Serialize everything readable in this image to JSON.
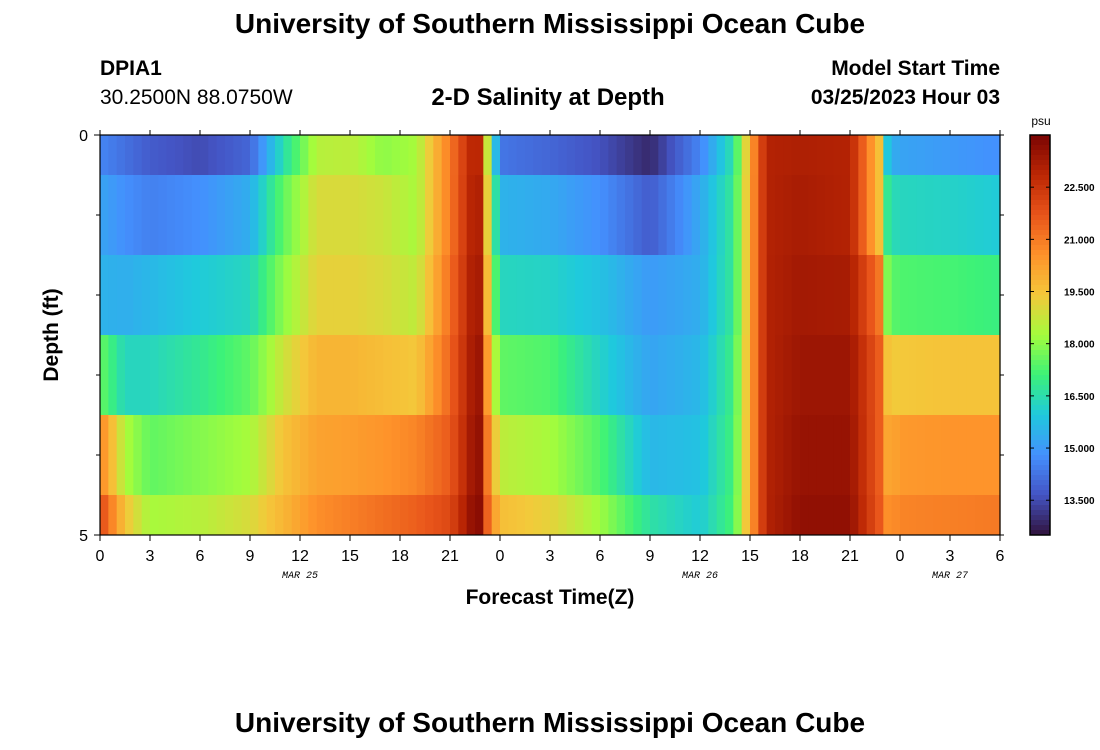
{
  "page": {
    "title": "University of Southern Mississippi Ocean Cube",
    "footer_title": "University of Southern Mississippi Ocean Cube",
    "station_id": "DPIA1",
    "station_coords": "30.2500N  88.0750W",
    "chart_title": "2-D Salinity at Depth",
    "model_start_label": "Model Start Time",
    "model_start_value": "03/25/2023 Hour 03"
  },
  "chart_data": {
    "type": "heatmap",
    "title": "2-D Salinity at Depth",
    "xlabel": "Forecast Time(Z)",
    "ylabel": "Depth (ft)",
    "x_start_hour": 0,
    "x_end_hour": 54,
    "x_tick_labels": [
      "0",
      "3",
      "6",
      "9",
      "12",
      "15",
      "18",
      "21",
      "0",
      "3",
      "6",
      "9",
      "12",
      "15",
      "18",
      "21",
      "0",
      "3",
      "6"
    ],
    "date_labels": [
      {
        "label": "MAR 25",
        "hour": 12
      },
      {
        "label": "MAR 26",
        "hour": 36
      },
      {
        "label": "MAR 27",
        "hour": 51
      }
    ],
    "ylim": [
      0,
      5
    ],
    "y_tick_labels": [
      "0",
      "5"
    ],
    "colorbar": {
      "unit": "psu",
      "min": 12.5,
      "max": 24.0,
      "tick_labels": [
        "22.500",
        "21.000",
        "19.500",
        "18.000",
        "16.500",
        "15.000",
        "13.500"
      ],
      "tick_values": [
        22.5,
        21.0,
        19.5,
        18.0,
        16.5,
        15.0,
        13.5
      ]
    },
    "colormap_stops": [
      "#30123b",
      "#4454c4",
      "#4490fe",
      "#1fc9dd",
      "#3cf278",
      "#a4fc3c",
      "#f4c83a",
      "#fe922a",
      "#e8541a",
      "#bc2704",
      "#7a0403"
    ],
    "depth_rows": [
      0,
      1,
      2,
      3,
      4,
      5
    ],
    "key_hours": [
      0,
      1.5,
      3,
      6,
      9,
      11,
      13,
      15,
      17,
      19,
      21,
      22.5,
      23,
      23.3,
      24,
      27,
      30,
      33,
      36,
      38,
      39.3,
      40,
      42,
      45,
      46.8,
      47.3,
      48,
      51,
      54
    ],
    "rows": [
      {
        "depth": 0,
        "values": [
          14.6,
          14.2,
          13.8,
          13.5,
          14.0,
          16.5,
          18.5,
          18.6,
          18.0,
          18.3,
          21.0,
          23.2,
          22.5,
          18.0,
          14.3,
          14.0,
          13.6,
          12.9,
          14.6,
          16.6,
          21.0,
          23.0,
          23.1,
          23.0,
          19.5,
          15.5,
          15.2,
          15.0,
          14.8
        ]
      },
      {
        "depth": 1,
        "values": [
          15.2,
          14.8,
          14.5,
          14.8,
          15.4,
          17.5,
          19.0,
          19.0,
          18.8,
          18.3,
          21.0,
          23.3,
          22.8,
          18.5,
          15.5,
          15.3,
          14.8,
          13.8,
          15.3,
          16.8,
          21.0,
          23.0,
          23.2,
          23.0,
          19.5,
          16.5,
          16.3,
          16.2,
          16.0
        ]
      },
      {
        "depth": 2,
        "values": [
          15.5,
          15.4,
          15.6,
          16.0,
          16.3,
          18.0,
          19.2,
          19.2,
          19.0,
          18.6,
          21.2,
          23.4,
          23.0,
          19.0,
          16.3,
          16.2,
          15.8,
          15.0,
          15.4,
          16.8,
          21.0,
          23.0,
          23.3,
          23.2,
          21.0,
          17.5,
          17.3,
          17.2,
          17.0
        ]
      },
      {
        "depth": 3,
        "values": [
          17.6,
          16.3,
          16.3,
          16.8,
          17.5,
          18.8,
          19.8,
          19.8,
          19.6,
          19.4,
          21.4,
          23.5,
          23.3,
          19.8,
          17.5,
          17.3,
          16.2,
          15.2,
          15.6,
          17.0,
          21.0,
          23.0,
          23.4,
          23.4,
          21.5,
          19.3,
          19.4,
          19.5,
          19.5
        ]
      },
      {
        "depth": 4,
        "values": [
          20.8,
          18.4,
          17.5,
          17.9,
          18.3,
          19.5,
          20.2,
          20.3,
          20.5,
          20.8,
          21.6,
          23.6,
          23.5,
          20.5,
          18.6,
          18.3,
          17.3,
          15.6,
          15.8,
          17.1,
          21.0,
          23.0,
          23.5,
          23.5,
          21.5,
          20.0,
          20.4,
          20.5,
          20.5
        ]
      },
      {
        "depth": 5,
        "values": [
          22.0,
          19.5,
          18.3,
          18.5,
          19.0,
          19.8,
          20.6,
          20.9,
          21.2,
          21.5,
          22.0,
          23.8,
          23.6,
          21.0,
          19.6,
          19.2,
          18.2,
          16.6,
          16.0,
          17.2,
          21.0,
          23.0,
          23.6,
          23.6,
          21.6,
          20.5,
          20.8,
          20.9,
          21.0
        ]
      }
    ]
  }
}
